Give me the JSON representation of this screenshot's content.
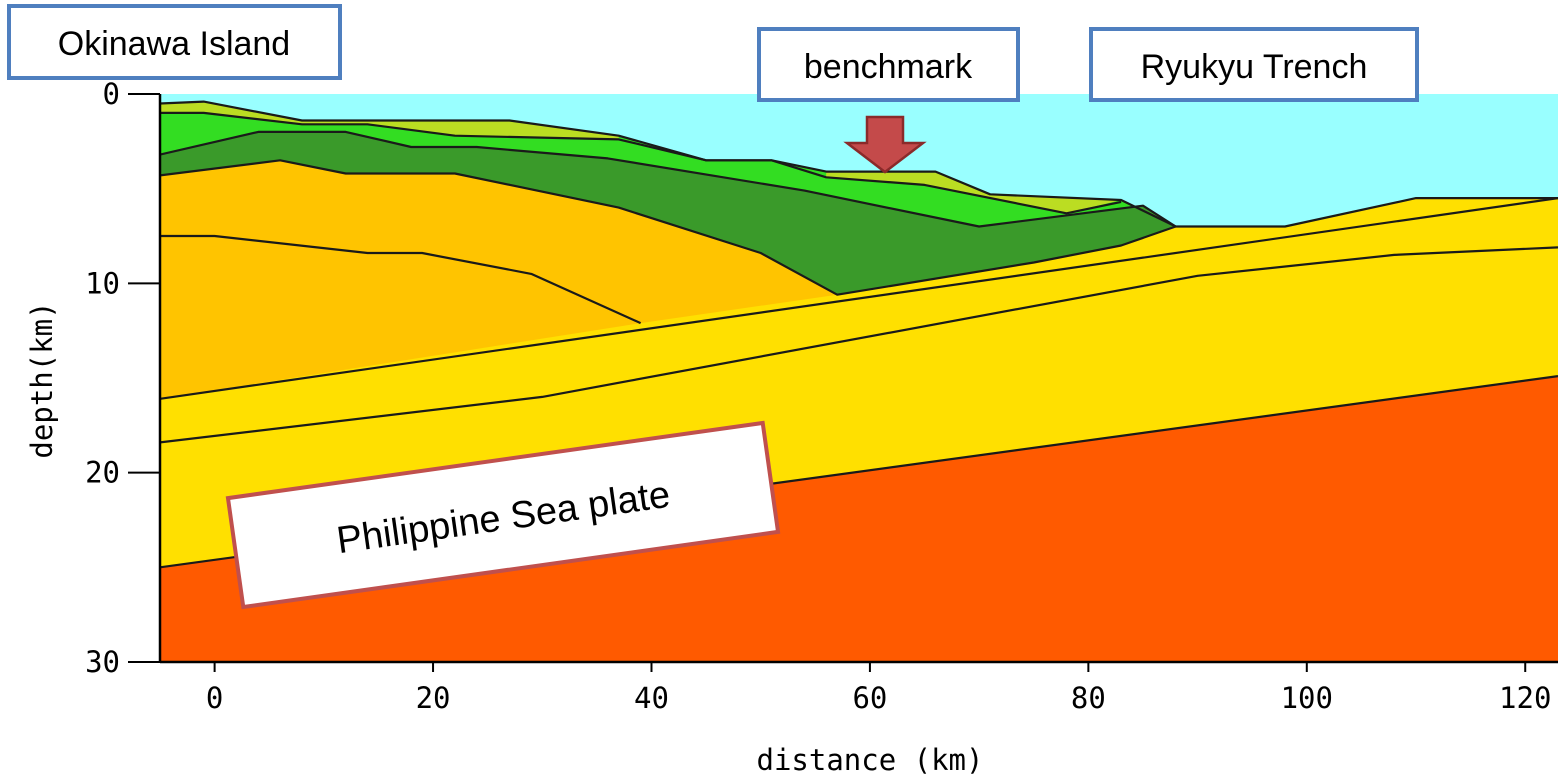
{
  "chart_data": {
    "type": "cross-section",
    "xlabel": "distance (km)",
    "ylabel": "depth(km)",
    "xlim": [
      -5,
      123
    ],
    "ylim": [
      30,
      0
    ],
    "x_ticks": [
      0,
      20,
      40,
      60,
      80,
      100,
      120
    ],
    "y_ticks": [
      0,
      10,
      20,
      30
    ],
    "colors": {
      "sea": "#99ffff",
      "upper_layer": "#33dd22",
      "thin_layer": "#bbdd22",
      "middle_layer": "#3a9a2a",
      "crust": "#ffc400",
      "slab": "#ffe000",
      "plate": "#ff5a00"
    },
    "boundaries": {
      "seafloor": [
        [
          -5,
          0.5
        ],
        [
          -1,
          0.4
        ],
        [
          8,
          1.4
        ],
        [
          27,
          1.4
        ],
        [
          37,
          2.2
        ],
        [
          45,
          3.5
        ],
        [
          51,
          3.5
        ],
        [
          56,
          4.1
        ],
        [
          66,
          4.1
        ],
        [
          71,
          5.3
        ],
        [
          83,
          5.6
        ],
        [
          88,
          7.0
        ],
        [
          98,
          7.0
        ],
        [
          110,
          5.5
        ],
        [
          123,
          5.5
        ]
      ],
      "layer_a": [
        [
          -5,
          1.0
        ],
        [
          -1,
          1.0
        ],
        [
          8,
          1.6
        ],
        [
          14,
          1.6
        ],
        [
          22,
          2.2
        ],
        [
          37,
          2.4
        ],
        [
          45,
          3.5
        ],
        [
          51,
          3.5
        ],
        [
          56,
          4.4
        ],
        [
          65,
          4.8
        ],
        [
          78,
          6.3
        ],
        [
          83,
          5.7
        ]
      ],
      "layer_b": [
        [
          -5,
          3.2
        ],
        [
          4,
          2.0
        ],
        [
          12,
          2.0
        ],
        [
          18,
          2.8
        ],
        [
          24,
          2.8
        ],
        [
          36,
          3.4
        ],
        [
          54,
          5.1
        ],
        [
          70,
          7.0
        ],
        [
          85,
          5.9
        ],
        [
          88,
          7.0
        ]
      ],
      "crust_top": [
        [
          -5,
          4.3
        ],
        [
          6,
          3.5
        ],
        [
          12,
          4.2
        ],
        [
          22,
          4.2
        ],
        [
          37,
          6.0
        ],
        [
          50,
          8.4
        ],
        [
          57,
          10.6
        ],
        [
          75,
          8.9
        ],
        [
          83,
          8.0
        ],
        [
          88,
          7.0
        ]
      ],
      "crust_inner": [
        [
          -5,
          7.5
        ],
        [
          0,
          7.5
        ],
        [
          14,
          8.4
        ],
        [
          19,
          8.4
        ],
        [
          29,
          9.5
        ],
        [
          39,
          12.1
        ]
      ],
      "slab_top": [
        [
          -5,
          16.1
        ],
        [
          123,
          5.5
        ]
      ],
      "slab_mid": [
        [
          -5,
          18.4
        ],
        [
          30,
          16.0
        ],
        [
          90,
          9.6
        ],
        [
          108,
          8.5
        ],
        [
          123,
          8.1
        ]
      ],
      "plate_top": [
        [
          -5,
          25.0
        ],
        [
          123,
          14.9
        ]
      ]
    }
  },
  "callouts": {
    "okinawa": "Okinawa Island",
    "benchmark": "benchmark",
    "trench": "Ryukyu Trench",
    "plate": "Philippine  Sea plate"
  }
}
